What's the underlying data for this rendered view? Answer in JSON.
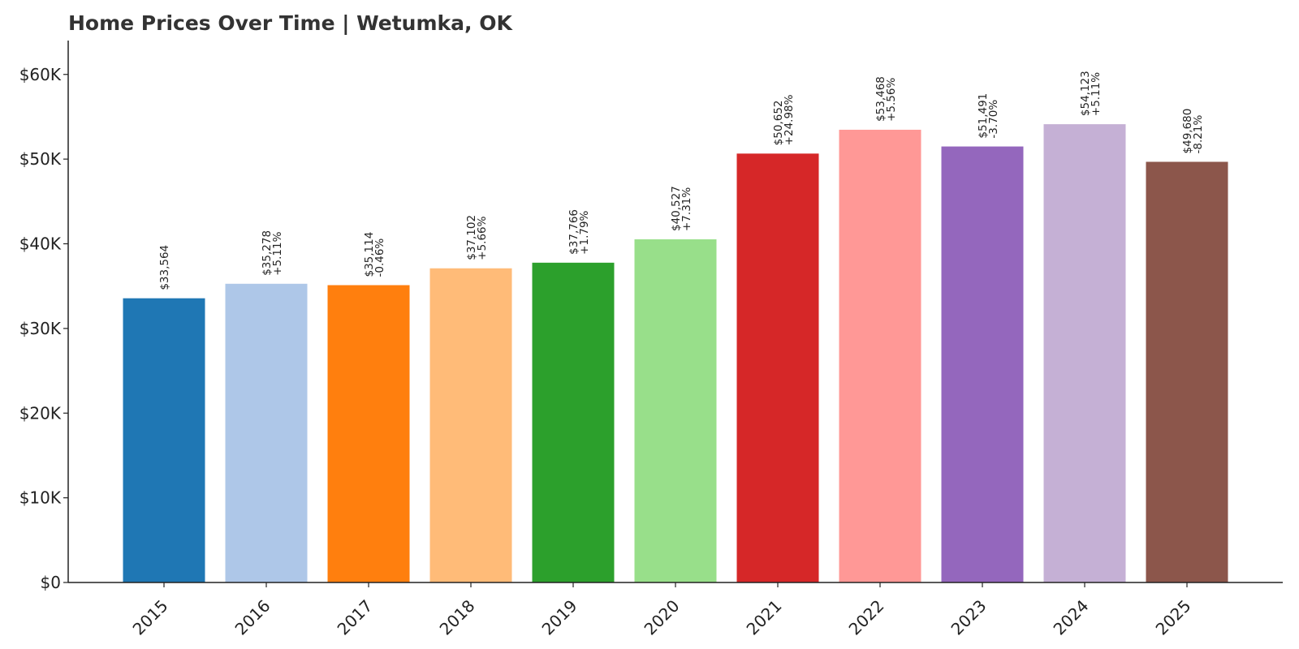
{
  "chart_data": {
    "type": "bar",
    "title": "Home Prices Over Time | Wetumka, OK",
    "xlabel": "",
    "ylabel": "",
    "categories": [
      "2015",
      "2016",
      "2017",
      "2018",
      "2019",
      "2020",
      "2021",
      "2022",
      "2023",
      "2024",
      "2025"
    ],
    "values": [
      33564,
      35278,
      35114,
      37102,
      37766,
      40527,
      50652,
      53468,
      51491,
      54123,
      49680
    ],
    "value_labels": [
      "$33,564",
      "$35,278",
      "$35,114",
      "$37,102",
      "$37,766",
      "$40,527",
      "$50,652",
      "$53,468",
      "$51,491",
      "$54,123",
      "$49,680"
    ],
    "change_labels": [
      "",
      "+5.11%",
      "-0.46%",
      "+5.66%",
      "+1.79%",
      "+7.31%",
      "+24.98%",
      "+5.56%",
      "-3.70%",
      "+5.11%",
      "-8.21%"
    ],
    "colors": [
      "#1f77b4",
      "#aec7e8",
      "#ff7f0e",
      "#ffbb78",
      "#2ca02c",
      "#98df8a",
      "#d62728",
      "#ff9896",
      "#9467bd",
      "#c5b0d5",
      "#8c564b"
    ],
    "y_ticks": [
      0,
      10000,
      20000,
      30000,
      40000,
      50000,
      60000
    ],
    "y_tick_labels": [
      "$0",
      "$10K",
      "$20K",
      "$30K",
      "$40K",
      "$50K",
      "$60K"
    ],
    "ylim": [
      0,
      64000
    ],
    "grid": false,
    "legend": "none"
  }
}
